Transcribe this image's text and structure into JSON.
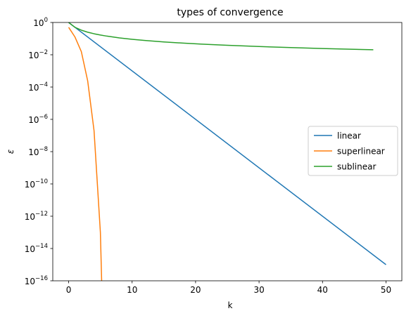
{
  "chart_data": {
    "type": "line",
    "title": "types of convergence",
    "xlabel": "k",
    "ylabel": "ε",
    "xlim": [
      -2.5,
      52.5
    ],
    "ylim_log10": [
      -16,
      0
    ],
    "yscale": "log",
    "x_ticks": [
      0,
      10,
      20,
      30,
      40,
      50
    ],
    "x_tick_labels": [
      "0",
      "10",
      "20",
      "30",
      "40",
      "50"
    ],
    "y_ticks_log10": [
      -16,
      -14,
      -12,
      -10,
      -8,
      -6,
      -4,
      -2,
      0
    ],
    "y_tick_labels": [
      {
        "base": "10",
        "exp": "−16"
      },
      {
        "base": "10",
        "exp": "−14"
      },
      {
        "base": "10",
        "exp": "−12"
      },
      {
        "base": "10",
        "exp": "−10"
      },
      {
        "base": "10",
        "exp": "−8"
      },
      {
        "base": "10",
        "exp": "−6"
      },
      {
        "base": "10",
        "exp": "−4"
      },
      {
        "base": "10",
        "exp": "−2"
      },
      {
        "base": "10",
        "exp": "0"
      }
    ],
    "grid": false,
    "legend_position": "center-right",
    "series": [
      {
        "name": "linear",
        "color": "#1f77b4",
        "x": [
          0,
          50
        ],
        "y": [
          1,
          1e-15
        ]
      },
      {
        "name": "superlinear",
        "color": "#ff7f0e",
        "x": [
          0,
          1,
          2,
          3,
          4,
          5,
          5.2
        ],
        "y": [
          0.5,
          0.125,
          0.0156,
          0.00024,
          2e-07,
          1e-13,
          1e-16
        ]
      },
      {
        "name": "sublinear",
        "color": "#2ca02c",
        "x": [
          0,
          1,
          2,
          3,
          4,
          5,
          6,
          8,
          10,
          12,
          15,
          18,
          21,
          25,
          30,
          35,
          40,
          45,
          48
        ],
        "y": [
          1,
          0.5,
          0.333,
          0.25,
          0.2,
          0.167,
          0.143,
          0.111,
          0.0909,
          0.0769,
          0.0625,
          0.0526,
          0.0455,
          0.0385,
          0.0323,
          0.0278,
          0.0244,
          0.0217,
          0.0204
        ]
      }
    ]
  }
}
